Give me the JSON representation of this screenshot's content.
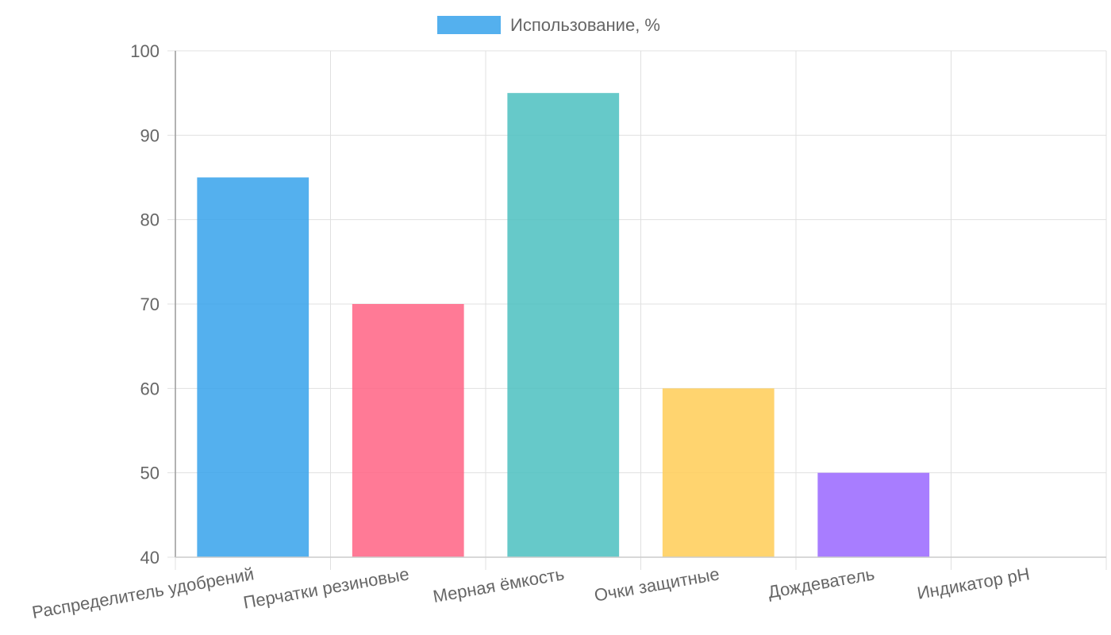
{
  "chart_data": {
    "type": "bar",
    "categories": [
      "Распределитель удобрений",
      "Перчатки резиновые",
      "Мерная ёмкость",
      "Очки защитные",
      "Дождеватель",
      "Индикатор pH"
    ],
    "series": [
      {
        "name": "Использование, %",
        "values": [
          85,
          70,
          95,
          60,
          50,
          40
        ],
        "colors": [
          "#36a2eb",
          "#ff6384",
          "#4bc0c0",
          "#ffcd56",
          "#9966ff",
          "#ff9f40"
        ]
      }
    ],
    "legend_color": "#36a2eb",
    "y_ticks": [
      "100",
      "90",
      "80",
      "70",
      "60",
      "50",
      "40"
    ],
    "ylim": [
      40,
      100
    ],
    "grid": true,
    "legend": "top-center",
    "title": "",
    "xlabel": "",
    "ylabel": ""
  }
}
